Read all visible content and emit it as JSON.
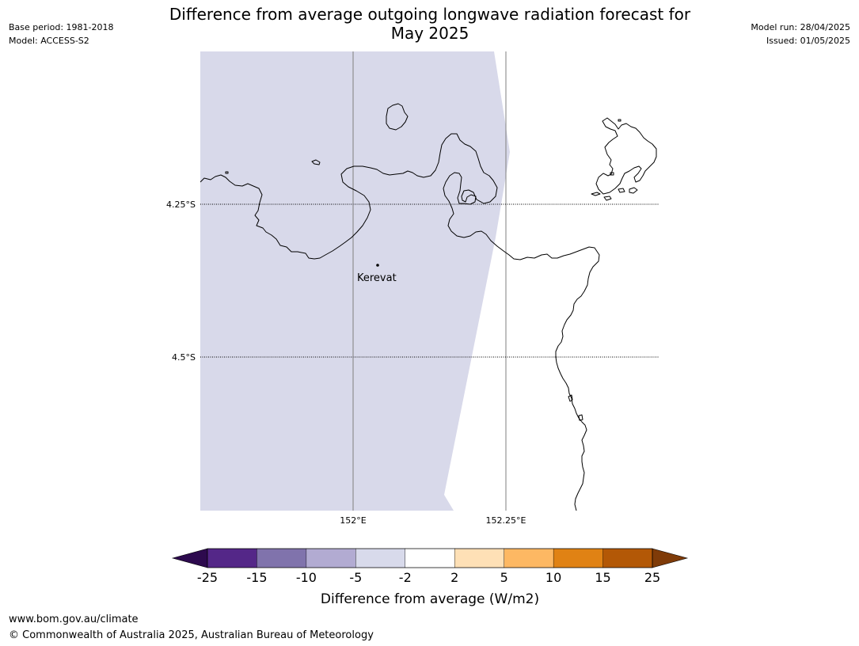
{
  "header": {
    "title_line1": "Difference from average outgoing longwave radiation forecast for",
    "title_line2": "May 2025",
    "base_period": "Base period: 1981-2018",
    "model": "Model: ACCESS-S2",
    "model_run": "Model run: 28/04/2025",
    "issued": "Issued: 01/05/2025"
  },
  "map": {
    "lat_labels": [
      "4.25°S",
      "4.5°S"
    ],
    "lon_labels": [
      "152°E",
      "152.25°E"
    ],
    "places": [
      {
        "name": "Kerevat"
      }
    ],
    "shading_category": "-5 to -2",
    "colors": {
      "shade": "#d8d9ea",
      "coast": "#000000",
      "meridian": "#808080"
    }
  },
  "colorbar": {
    "title": "Difference from average (W/m2)",
    "ticks": [
      "-25",
      "-15",
      "-10",
      "-5",
      "-2",
      "2",
      "5",
      "10",
      "15",
      "25"
    ],
    "under_color": "#2d0a4e",
    "over_color": "#7f3b08",
    "colors": [
      "#542788",
      "#8073ac",
      "#b2abd2",
      "#d8daeb",
      "#ffffff",
      "#fee0b6",
      "#fdb863",
      "#e08214",
      "#b35806"
    ]
  },
  "footer": {
    "url": "www.bom.gov.au/climate",
    "copyright": "© Commonwealth of Australia 2025, Australian Bureau of Meteorology"
  }
}
